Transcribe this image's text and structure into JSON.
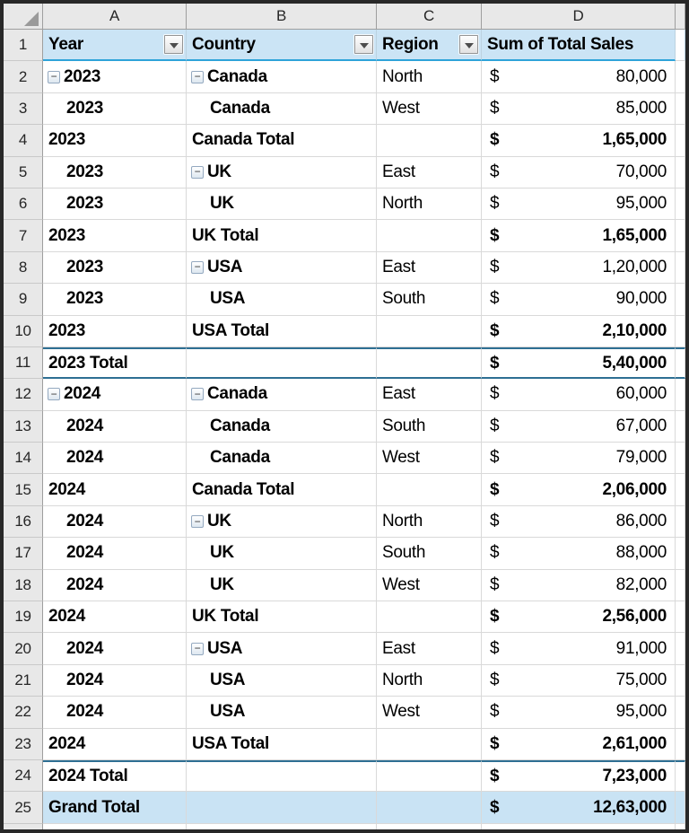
{
  "sheet": {
    "app": "excel-worksheet",
    "column_headers": [
      "A",
      "B",
      "C",
      "D"
    ],
    "pivot_header": {
      "row_num": "1",
      "year_label": "Year",
      "country_label": "Country",
      "region_label": "Region",
      "values_label": "Sum of Total Sales"
    },
    "currency_symbol": "$",
    "icons": {
      "filter_icon": "dropdown-triangle",
      "collapse_icon": "minus",
      "select_all_icon": "corner-triangle"
    },
    "colors": {
      "outer_border": "#282828",
      "header_strip_bg": "#e8e8e8",
      "header_strip_border": "#9e9e9e",
      "pivot_header_bg": "#cbe4f5",
      "pivot_header_accent": "#2ea3d9",
      "gridline": "#d9d9d9",
      "total_border": "#2e6f93",
      "grand_total_bg": "#c9e3f4",
      "collapse_border": "#94a9c0",
      "text": "#000000"
    },
    "collapse_glyph": "−",
    "rows": [
      {
        "n": "2",
        "a": "2023",
        "aBtn": true,
        "aStyle": "btn",
        "b": "Canada",
        "bBtn": true,
        "bStyle": "btn",
        "c": "North",
        "d": "80,000",
        "bold": false,
        "tb": false,
        "bb": false,
        "fill": false
      },
      {
        "n": "3",
        "a": "2023",
        "aBtn": false,
        "aStyle": "ind",
        "b": "Canada",
        "bBtn": false,
        "bStyle": "ind",
        "c": "West",
        "d": "85,000",
        "bold": false,
        "tb": false,
        "bb": false,
        "fill": false
      },
      {
        "n": "4",
        "a": "2023",
        "aBtn": false,
        "aStyle": "flush",
        "b": "Canada Total",
        "bBtn": false,
        "bStyle": "flush",
        "c": "",
        "d": "1,65,000",
        "bold": true,
        "tb": false,
        "bb": false,
        "fill": false
      },
      {
        "n": "5",
        "a": "2023",
        "aBtn": false,
        "aStyle": "ind",
        "b": "UK",
        "bBtn": true,
        "bStyle": "btn",
        "c": "East",
        "d": "70,000",
        "bold": false,
        "tb": false,
        "bb": false,
        "fill": false
      },
      {
        "n": "6",
        "a": "2023",
        "aBtn": false,
        "aStyle": "ind",
        "b": "UK",
        "bBtn": false,
        "bStyle": "ind",
        "c": "North",
        "d": "95,000",
        "bold": false,
        "tb": false,
        "bb": false,
        "fill": false
      },
      {
        "n": "7",
        "a": "2023",
        "aBtn": false,
        "aStyle": "flush",
        "b": "UK Total",
        "bBtn": false,
        "bStyle": "flush",
        "c": "",
        "d": "1,65,000",
        "bold": true,
        "tb": false,
        "bb": false,
        "fill": false
      },
      {
        "n": "8",
        "a": "2023",
        "aBtn": false,
        "aStyle": "ind",
        "b": "USA",
        "bBtn": true,
        "bStyle": "btn",
        "c": "East",
        "d": "1,20,000",
        "bold": false,
        "tb": false,
        "bb": false,
        "fill": false
      },
      {
        "n": "9",
        "a": "2023",
        "aBtn": false,
        "aStyle": "ind",
        "b": "USA",
        "bBtn": false,
        "bStyle": "ind",
        "c": "South",
        "d": "90,000",
        "bold": false,
        "tb": false,
        "bb": false,
        "fill": false
      },
      {
        "n": "10",
        "a": "2023",
        "aBtn": false,
        "aStyle": "flush",
        "b": "USA Total",
        "bBtn": false,
        "bStyle": "flush",
        "c": "",
        "d": "2,10,000",
        "bold": true,
        "tb": false,
        "bb": false,
        "fill": false
      },
      {
        "n": "11",
        "a": "2023 Total",
        "aBtn": false,
        "aStyle": "flush",
        "b": "",
        "bBtn": false,
        "bStyle": "flush",
        "c": "",
        "d": "5,40,000",
        "bold": true,
        "tb": true,
        "bb": true,
        "fill": false
      },
      {
        "n": "12",
        "a": "2024",
        "aBtn": true,
        "aStyle": "btn",
        "b": "Canada",
        "bBtn": true,
        "bStyle": "btn",
        "c": "East",
        "d": "60,000",
        "bold": false,
        "tb": false,
        "bb": false,
        "fill": false
      },
      {
        "n": "13",
        "a": "2024",
        "aBtn": false,
        "aStyle": "ind",
        "b": "Canada",
        "bBtn": false,
        "bStyle": "ind",
        "c": "South",
        "d": "67,000",
        "bold": false,
        "tb": false,
        "bb": false,
        "fill": false
      },
      {
        "n": "14",
        "a": "2024",
        "aBtn": false,
        "aStyle": "ind",
        "b": "Canada",
        "bBtn": false,
        "bStyle": "ind",
        "c": "West",
        "d": "79,000",
        "bold": false,
        "tb": false,
        "bb": false,
        "fill": false
      },
      {
        "n": "15",
        "a": "2024",
        "aBtn": false,
        "aStyle": "flush",
        "b": "Canada Total",
        "bBtn": false,
        "bStyle": "flush",
        "c": "",
        "d": "2,06,000",
        "bold": true,
        "tb": false,
        "bb": false,
        "fill": false
      },
      {
        "n": "16",
        "a": "2024",
        "aBtn": false,
        "aStyle": "ind",
        "b": "UK",
        "bBtn": true,
        "bStyle": "btn",
        "c": "North",
        "d": "86,000",
        "bold": false,
        "tb": false,
        "bb": false,
        "fill": false
      },
      {
        "n": "17",
        "a": "2024",
        "aBtn": false,
        "aStyle": "ind",
        "b": "UK",
        "bBtn": false,
        "bStyle": "ind",
        "c": "South",
        "d": "88,000",
        "bold": false,
        "tb": false,
        "bb": false,
        "fill": false
      },
      {
        "n": "18",
        "a": "2024",
        "aBtn": false,
        "aStyle": "ind",
        "b": "UK",
        "bBtn": false,
        "bStyle": "ind",
        "c": "West",
        "d": "82,000",
        "bold": false,
        "tb": false,
        "bb": false,
        "fill": false
      },
      {
        "n": "19",
        "a": "2024",
        "aBtn": false,
        "aStyle": "flush",
        "b": "UK Total",
        "bBtn": false,
        "bStyle": "flush",
        "c": "",
        "d": "2,56,000",
        "bold": true,
        "tb": false,
        "bb": false,
        "fill": false
      },
      {
        "n": "20",
        "a": "2024",
        "aBtn": false,
        "aStyle": "ind",
        "b": "USA",
        "bBtn": true,
        "bStyle": "btn",
        "c": "East",
        "d": "91,000",
        "bold": false,
        "tb": false,
        "bb": false,
        "fill": false
      },
      {
        "n": "21",
        "a": "2024",
        "aBtn": false,
        "aStyle": "ind",
        "b": "USA",
        "bBtn": false,
        "bStyle": "ind",
        "c": "North",
        "d": "75,000",
        "bold": false,
        "tb": false,
        "bb": false,
        "fill": false
      },
      {
        "n": "22",
        "a": "2024",
        "aBtn": false,
        "aStyle": "ind",
        "b": "USA",
        "bBtn": false,
        "bStyle": "ind",
        "c": "West",
        "d": "95,000",
        "bold": false,
        "tb": false,
        "bb": false,
        "fill": false
      },
      {
        "n": "23",
        "a": "2024",
        "aBtn": false,
        "aStyle": "flush",
        "b": "USA Total",
        "bBtn": false,
        "bStyle": "flush",
        "c": "",
        "d": "2,61,000",
        "bold": true,
        "tb": false,
        "bb": false,
        "fill": false
      },
      {
        "n": "24",
        "a": "2024 Total",
        "aBtn": false,
        "aStyle": "flush",
        "b": "",
        "bBtn": false,
        "bStyle": "flush",
        "c": "",
        "d": "7,23,000",
        "bold": true,
        "tb": true,
        "bb": false,
        "fill": false
      },
      {
        "n": "25",
        "a": "Grand Total",
        "aBtn": false,
        "aStyle": "flush",
        "b": "",
        "bBtn": false,
        "bStyle": "flush",
        "c": "",
        "d": "12,63,000",
        "bold": true,
        "tb": false,
        "bb": false,
        "fill": true
      }
    ]
  }
}
